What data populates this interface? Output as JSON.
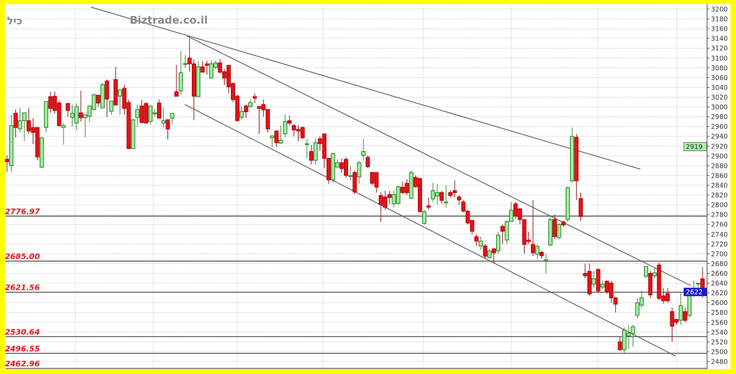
{
  "header": {
    "brand": "Biztrade.co.il",
    "symbol": "כיל"
  },
  "colors": {
    "up": "#9cf09c",
    "down": "#e0141c",
    "border": "#ffff00",
    "last_price_bg": "#1a1ad0",
    "marker_bg": "#a8f0a8"
  },
  "chart_data": {
    "type": "candlestick",
    "title": "",
    "ylim": [
      2480,
      3200
    ],
    "y_ticks": [
      3200,
      3180,
      3160,
      3140,
      3120,
      3100,
      3080,
      3060,
      3040,
      3020,
      3000,
      2980,
      2960,
      2940,
      2920,
      2900,
      2880,
      2860,
      2840,
      2820,
      2800,
      2780,
      2760,
      2740,
      2720,
      2700,
      2680,
      2660,
      2640,
      2620,
      2600,
      2580,
      2560,
      2540,
      2520,
      2500,
      2480
    ],
    "grid": true,
    "last_price": "2622",
    "marker_price": "2919",
    "levels": [
      "2776.97",
      "2685.00",
      "2621.56",
      "2530.64",
      "2496.55",
      "2462.96"
    ],
    "trendlines": [
      {
        "from": [
          19.3,
          3204
        ],
        "to": [
          145.7,
          2873
        ]
      },
      {
        "from": [
          41.4,
          3145
        ],
        "to": [
          157.3,
          2635
        ]
      },
      {
        "from": [
          40.9,
          3005
        ],
        "to": [
          153.8,
          2491
        ]
      }
    ],
    "ohlc": [
      [
        2893,
        2901,
        2867,
        2888
      ],
      [
        2880,
        2984,
        2867,
        2962
      ],
      [
        2987,
        2995,
        2938,
        2958
      ],
      [
        2955,
        2998,
        2948,
        2972
      ],
      [
        2972,
        2988,
        2930,
        2988
      ],
      [
        2972,
        2998,
        2945,
        2951
      ],
      [
        2958,
        2977,
        2924,
        2948
      ],
      [
        2958,
        2958,
        2891,
        2898
      ],
      [
        2877,
        2937,
        2875,
        2937
      ],
      [
        2958,
        3011,
        2948,
        3011
      ],
      [
        3021,
        3031,
        2988,
        2997
      ],
      [
        3022,
        3031,
        2987,
        2993
      ],
      [
        3008,
        3013,
        2960,
        2962
      ],
      [
        2958,
        2967,
        2923,
        2962
      ],
      [
        3007,
        3008,
        2980,
        2993
      ],
      [
        2979,
        3005,
        2960,
        2987
      ],
      [
        2967,
        3008,
        2952,
        3001
      ],
      [
        2988,
        3033,
        2970,
        2978
      ],
      [
        2978,
        2984,
        2938,
        2984
      ],
      [
        2981,
        3002,
        2970,
        3002
      ],
      [
        2995,
        3027,
        2993,
        3025
      ],
      [
        3024,
        3024,
        3000,
        3008
      ],
      [
        2998,
        3049,
        2998,
        3046
      ],
      [
        3053,
        3056,
        2979,
        3016
      ],
      [
        2991,
        3012,
        2984,
        3012
      ],
      [
        3056,
        3082,
        3004,
        3004
      ],
      [
        3022,
        3035,
        2984,
        3035
      ],
      [
        3038,
        3045,
        2984,
        2997
      ],
      [
        3009,
        3015,
        2915,
        2915
      ],
      [
        2915,
        2974,
        2915,
        2974
      ],
      [
        2978,
        3005,
        2960,
        2995
      ],
      [
        3002,
        3015,
        2968,
        2968
      ],
      [
        3007,
        3010,
        2967,
        2967
      ],
      [
        2970,
        3002,
        2963,
        3002
      ],
      [
        2988,
        2995,
        2980,
        2988
      ],
      [
        3008,
        3015,
        2977,
        2977
      ],
      [
        2967,
        2998,
        2958,
        2972
      ],
      [
        2974,
        2974,
        2934,
        2955
      ],
      [
        2977,
        2987,
        2964,
        2987
      ],
      [
        3031,
        3086,
        3022,
        3022
      ],
      [
        3033,
        3115,
        3025,
        3070
      ],
      [
        3089,
        3106,
        3080,
        3089
      ],
      [
        3100,
        3140,
        3072,
        3088
      ],
      [
        3088,
        3097,
        2973,
        3022
      ],
      [
        3021,
        3094,
        3021,
        3082
      ],
      [
        3082,
        3094,
        3071,
        3071
      ],
      [
        3088,
        3094,
        3066,
        3085
      ],
      [
        3059,
        3095,
        3059,
        3088
      ],
      [
        3081,
        3095,
        3078,
        3090
      ],
      [
        3090,
        3098,
        3069,
        3071
      ],
      [
        3072,
        3077,
        3045,
        3059
      ],
      [
        3085,
        3085,
        3028,
        3041
      ],
      [
        3048,
        3050,
        3010,
        3015
      ],
      [
        3022,
        3025,
        2970,
        2972
      ],
      [
        2979,
        3000,
        2975,
        2991
      ],
      [
        3002,
        3005,
        2978,
        2990
      ],
      [
        3001,
        3016,
        2998,
        3009
      ],
      [
        3021,
        3028,
        3008,
        3018
      ],
      [
        3001,
        3001,
        2945,
        2997
      ],
      [
        3005,
        3015,
        2980,
        2994
      ],
      [
        2995,
        2995,
        2948,
        2955
      ],
      [
        2937,
        2941,
        2918,
        2941
      ],
      [
        2951,
        2951,
        2918,
        2927
      ],
      [
        2926,
        2962,
        2925,
        2932
      ],
      [
        2945,
        2985,
        2938,
        2970
      ],
      [
        2972,
        2983,
        2962,
        2967
      ],
      [
        2962,
        2965,
        2940,
        2953
      ],
      [
        2954,
        2962,
        2930,
        2951
      ],
      [
        2958,
        2960,
        2935,
        2937
      ],
      [
        2925,
        2935,
        2895,
        2925
      ],
      [
        2909,
        2922,
        2882,
        2891
      ],
      [
        2891,
        2936,
        2882,
        2927
      ],
      [
        2935,
        2940,
        2910,
        2925
      ],
      [
        2945,
        2945,
        2875,
        2895
      ],
      [
        2895,
        2895,
        2843,
        2851
      ],
      [
        2851,
        2905,
        2845,
        2905
      ],
      [
        2877,
        2893,
        2877,
        2886
      ],
      [
        2886,
        2895,
        2865,
        2874
      ],
      [
        2893,
        2897,
        2855,
        2860
      ],
      [
        2860,
        2880,
        2850,
        2860
      ],
      [
        2866,
        2870,
        2822,
        2826
      ],
      [
        2857,
        2890,
        2843,
        2886
      ],
      [
        2901,
        2935,
        2890,
        2909
      ],
      [
        2897,
        2901,
        2875,
        2878
      ],
      [
        2866,
        2868,
        2840,
        2844
      ],
      [
        2866,
        2866,
        2825,
        2836
      ],
      [
        2819,
        2826,
        2765,
        2800
      ],
      [
        2816,
        2829,
        2790,
        2795
      ],
      [
        2821,
        2829,
        2802,
        2815
      ],
      [
        2802,
        2829,
        2795,
        2821
      ],
      [
        2803,
        2840,
        2800,
        2837
      ],
      [
        2836,
        2848,
        2822,
        2825
      ],
      [
        2844,
        2852,
        2820,
        2825
      ],
      [
        2813,
        2870,
        2813,
        2866
      ],
      [
        2856,
        2860,
        2835,
        2837
      ],
      [
        2854,
        2854,
        2786,
        2786
      ],
      [
        2762,
        2790,
        2760,
        2786
      ],
      [
        2798,
        2815,
        2790,
        2795
      ],
      [
        2812,
        2845,
        2805,
        2829
      ],
      [
        2818,
        2843,
        2800,
        2825
      ],
      [
        2825,
        2829,
        2802,
        2809
      ],
      [
        2806,
        2840,
        2795,
        2806
      ],
      [
        2825,
        2830,
        2815,
        2819
      ],
      [
        2829,
        2850,
        2815,
        2825
      ],
      [
        2816,
        2820,
        2800,
        2810
      ],
      [
        2806,
        2810,
        2785,
        2787
      ],
      [
        2787,
        2790,
        2760,
        2763
      ],
      [
        2768,
        2770,
        2740,
        2746
      ],
      [
        2735,
        2740,
        2716,
        2726
      ],
      [
        2716,
        2735,
        2708,
        2726
      ],
      [
        2716,
        2720,
        2690,
        2695
      ],
      [
        2692,
        2710,
        2690,
        2706
      ],
      [
        2710,
        2712,
        2682,
        2702
      ],
      [
        2706,
        2745,
        2700,
        2738
      ],
      [
        2756,
        2760,
        2720,
        2746
      ],
      [
        2728,
        2768,
        2720,
        2766
      ],
      [
        2766,
        2806,
        2765,
        2789
      ],
      [
        2802,
        2806,
        2772,
        2777
      ],
      [
        2792,
        2792,
        2760,
        2770
      ],
      [
        2770,
        2770,
        2700,
        2719
      ],
      [
        2728,
        2745,
        2720,
        2725
      ],
      [
        2719,
        2810,
        2695,
        2702
      ],
      [
        2699,
        2720,
        2690,
        2715
      ],
      [
        2703,
        2706,
        2690,
        2696
      ],
      [
        2688,
        2700,
        2660,
        2688
      ],
      [
        2718,
        2775,
        2715,
        2770
      ],
      [
        2770,
        2780,
        2730,
        2735
      ],
      [
        2733,
        2762,
        2730,
        2760
      ],
      [
        2765,
        2768,
        2755,
        2759
      ],
      [
        2770,
        2838,
        2765,
        2835
      ],
      [
        2849,
        2958,
        2845,
        2940
      ],
      [
        2938,
        2945,
        2810,
        2849
      ],
      [
        2813,
        2825,
        2767,
        2776
      ],
      [
        2660,
        2680,
        2650,
        2655
      ],
      [
        2664,
        2680,
        2614,
        2618
      ],
      [
        2638,
        2665,
        2630,
        2649
      ],
      [
        2668,
        2670,
        2620,
        2624
      ],
      [
        2632,
        2645,
        2628,
        2638
      ],
      [
        2644,
        2645,
        2618,
        2623
      ],
      [
        2640,
        2645,
        2600,
        2610
      ],
      [
        2610,
        2612,
        2580,
        2597
      ],
      [
        2520,
        2532,
        2502,
        2504
      ],
      [
        2504,
        2550,
        2498,
        2544
      ],
      [
        2532,
        2555,
        2505,
        2538
      ],
      [
        2537,
        2555,
        2510,
        2551
      ],
      [
        2574,
        2610,
        2568,
        2600
      ],
      [
        2595,
        2625,
        2590,
        2610
      ],
      [
        2654,
        2674,
        2650,
        2674
      ],
      [
        2660,
        2665,
        2610,
        2616
      ],
      [
        2655,
        2672,
        2650,
        2661
      ],
      [
        2677,
        2682,
        2605,
        2609
      ],
      [
        2614,
        2630,
        2598,
        2604
      ],
      [
        2619,
        2630,
        2600,
        2604
      ],
      [
        2582,
        2590,
        2520,
        2552
      ],
      [
        2566,
        2565,
        2555,
        2560
      ],
      [
        2564,
        2622,
        2555,
        2594
      ],
      [
        2582,
        2590,
        2560,
        2564
      ],
      [
        2574,
        2624,
        2570,
        2618
      ],
      [
        2619,
        2645,
        2612,
        2630
      ],
      [
        2640,
        2640,
        2620,
        2640
      ],
      [
        2649,
        2673,
        2610,
        2621
      ]
    ]
  }
}
